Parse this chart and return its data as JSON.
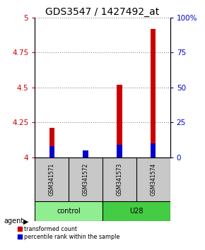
{
  "title": "GDS3547 / 1427492_at",
  "samples": [
    "GSM341571",
    "GSM341572",
    "GSM341573",
    "GSM341574"
  ],
  "red_values": [
    4.21,
    4.02,
    4.52,
    4.92
  ],
  "blue_values": [
    0.08,
    0.05,
    0.09,
    0.1
  ],
  "ylim_left": [
    4.0,
    5.0
  ],
  "ylim_right": [
    0.0,
    1.0
  ],
  "yticks_left": [
    4.0,
    4.25,
    4.5,
    4.75,
    5.0
  ],
  "yticks_right": [
    0.0,
    0.25,
    0.5,
    0.75,
    1.0
  ],
  "ytick_labels_left": [
    "4",
    "4.25",
    "4.5",
    "4.75",
    "5"
  ],
  "ytick_labels_right": [
    "0",
    "25",
    "50",
    "75",
    "100%"
  ],
  "groups": [
    {
      "label": "control",
      "indices": [
        0,
        1
      ],
      "color": "#90EE90"
    },
    {
      "label": "U28",
      "indices": [
        2,
        3
      ],
      "color": "#44CC44"
    }
  ],
  "red_color": "#CC0000",
  "blue_color": "#0000CC",
  "bar_width": 0.15,
  "grid_color": "#888888",
  "sample_box_color": "#C8C8C8",
  "agent_label": "agent",
  "legend_red": "transformed count",
  "legend_blue": "percentile rank within the sample",
  "title_fontsize": 10,
  "tick_fontsize": 7.5,
  "label_fontsize": 7
}
